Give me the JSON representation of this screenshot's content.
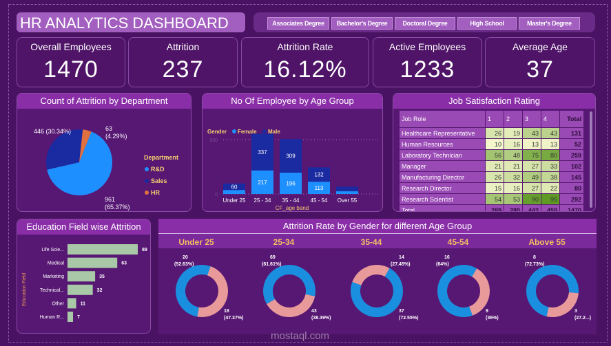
{
  "header": {
    "title": "HR ANALYTICS DASHBOARD",
    "slicers": [
      "Associates Degree",
      "Bachelor's Degree",
      "Doctoral Degree",
      "High School",
      "Master's Degree"
    ]
  },
  "kpis": [
    {
      "label": "Overall Employees",
      "value": "1470"
    },
    {
      "label": "Attrition",
      "value": "237"
    },
    {
      "label": "Attrition Rate",
      "value": "16.12%"
    },
    {
      "label": "Active Employees",
      "value": "1233"
    },
    {
      "label": "Average Age",
      "value": "37"
    }
  ],
  "colors": {
    "rnd": "#1e8fff",
    "sales": "#1a2aa0",
    "hr": "#e07040",
    "female": "#1e8fff",
    "male": "#1a2aa0",
    "edu_bar": "#a8c8a8",
    "donut_blue": "#1a8fe0",
    "donut_pink": "#e89a9a",
    "heat_low": "#f4f6cc",
    "heat_high": "#5e9a24"
  },
  "chart_data": [
    {
      "type": "pie",
      "title": "Count of Attrition by Department",
      "legend_title": "Department",
      "legend_position": "right",
      "slices": [
        {
          "name": "R&D",
          "value": 961,
          "label": "961",
          "pct": "(65.37%)"
        },
        {
          "name": "Sales",
          "value": 446,
          "label": "446 (30.34%)",
          "pct": ""
        },
        {
          "name": "HR",
          "value": 63,
          "label": "63",
          "pct": "(4.29%)"
        }
      ]
    },
    {
      "type": "bar",
      "stacked": true,
      "title": "No Of Employee by Age Group",
      "legend_title": "Gender",
      "legend_position": "top-left",
      "xlabel": "CF_age band",
      "categories": [
        "Under 25",
        "25 - 34",
        "35 - 44",
        "45 - 54",
        "Over 55"
      ],
      "yticks": [
        0,
        500
      ],
      "series": [
        {
          "name": "Female",
          "values": [
            37,
            217,
            196,
            113,
            25
          ],
          "labels": [
            "",
            "217",
            "196",
            "113",
            ""
          ]
        },
        {
          "name": "Male",
          "values": [
            60,
            337,
            309,
            132,
            42
          ],
          "labels": [
            "60",
            "337",
            "309",
            "132",
            ""
          ]
        }
      ]
    },
    {
      "type": "table",
      "title": "Job Satisfaction Rating",
      "columns": [
        "Job Role",
        "1",
        "2",
        "3",
        "4",
        "Total"
      ],
      "rows": [
        [
          "Healthcare Representative",
          26,
          19,
          43,
          43,
          131
        ],
        [
          "Human Resources",
          10,
          16,
          13,
          13,
          52
        ],
        [
          "Laboratory Technician",
          56,
          48,
          75,
          80,
          259
        ],
        [
          "Manager",
          21,
          21,
          27,
          33,
          102
        ],
        [
          "Manufacturing Director",
          26,
          32,
          49,
          38,
          145
        ],
        [
          "Research Director",
          15,
          16,
          27,
          22,
          80
        ],
        [
          "Research Scientist",
          54,
          53,
          90,
          95,
          292
        ]
      ],
      "total": [
        "Total",
        289,
        280,
        442,
        459,
        1470
      ]
    },
    {
      "type": "bar",
      "orientation": "horizontal",
      "title": "Education Field wise Attrition",
      "ylabel": "Education Field",
      "categories": [
        "Life Scie...",
        "Medical",
        "Marketing",
        "Technical...",
        "Other",
        "Human R..."
      ],
      "values": [
        89,
        63,
        35,
        32,
        11,
        7
      ]
    },
    {
      "type": "pie",
      "donut": true,
      "title": "Attrition Rate by Gender for different Age Group",
      "groups": [
        {
          "name": "Under 25",
          "blue": {
            "value": 20,
            "label": "20",
            "pct": "(52.63%)"
          },
          "pink": {
            "value": 18,
            "label": "18",
            "pct": "(47.37%)"
          }
        },
        {
          "name": "25-34",
          "blue": {
            "value": 69,
            "label": "69",
            "pct": "(61.61%)"
          },
          "pink": {
            "value": 43,
            "label": "43",
            "pct": "(38.39%)"
          }
        },
        {
          "name": "35-44",
          "blue": {
            "value": 37,
            "label": "37",
            "pct": "(72.55%)"
          },
          "pink": {
            "value": 14,
            "label": "14",
            "pct": "(27.45%)"
          }
        },
        {
          "name": "45-54",
          "blue": {
            "value": 16,
            "label": "16",
            "pct": "(64%)"
          },
          "pink": {
            "value": 9,
            "label": "9",
            "pct": "(36%)"
          }
        },
        {
          "name": "Above 55",
          "blue": {
            "value": 8,
            "label": "8",
            "pct": "(72.73%)"
          },
          "pink": {
            "value": 3,
            "label": "3",
            "pct": "(27.2...)"
          }
        }
      ]
    }
  ],
  "watermark": "mostaql.com"
}
